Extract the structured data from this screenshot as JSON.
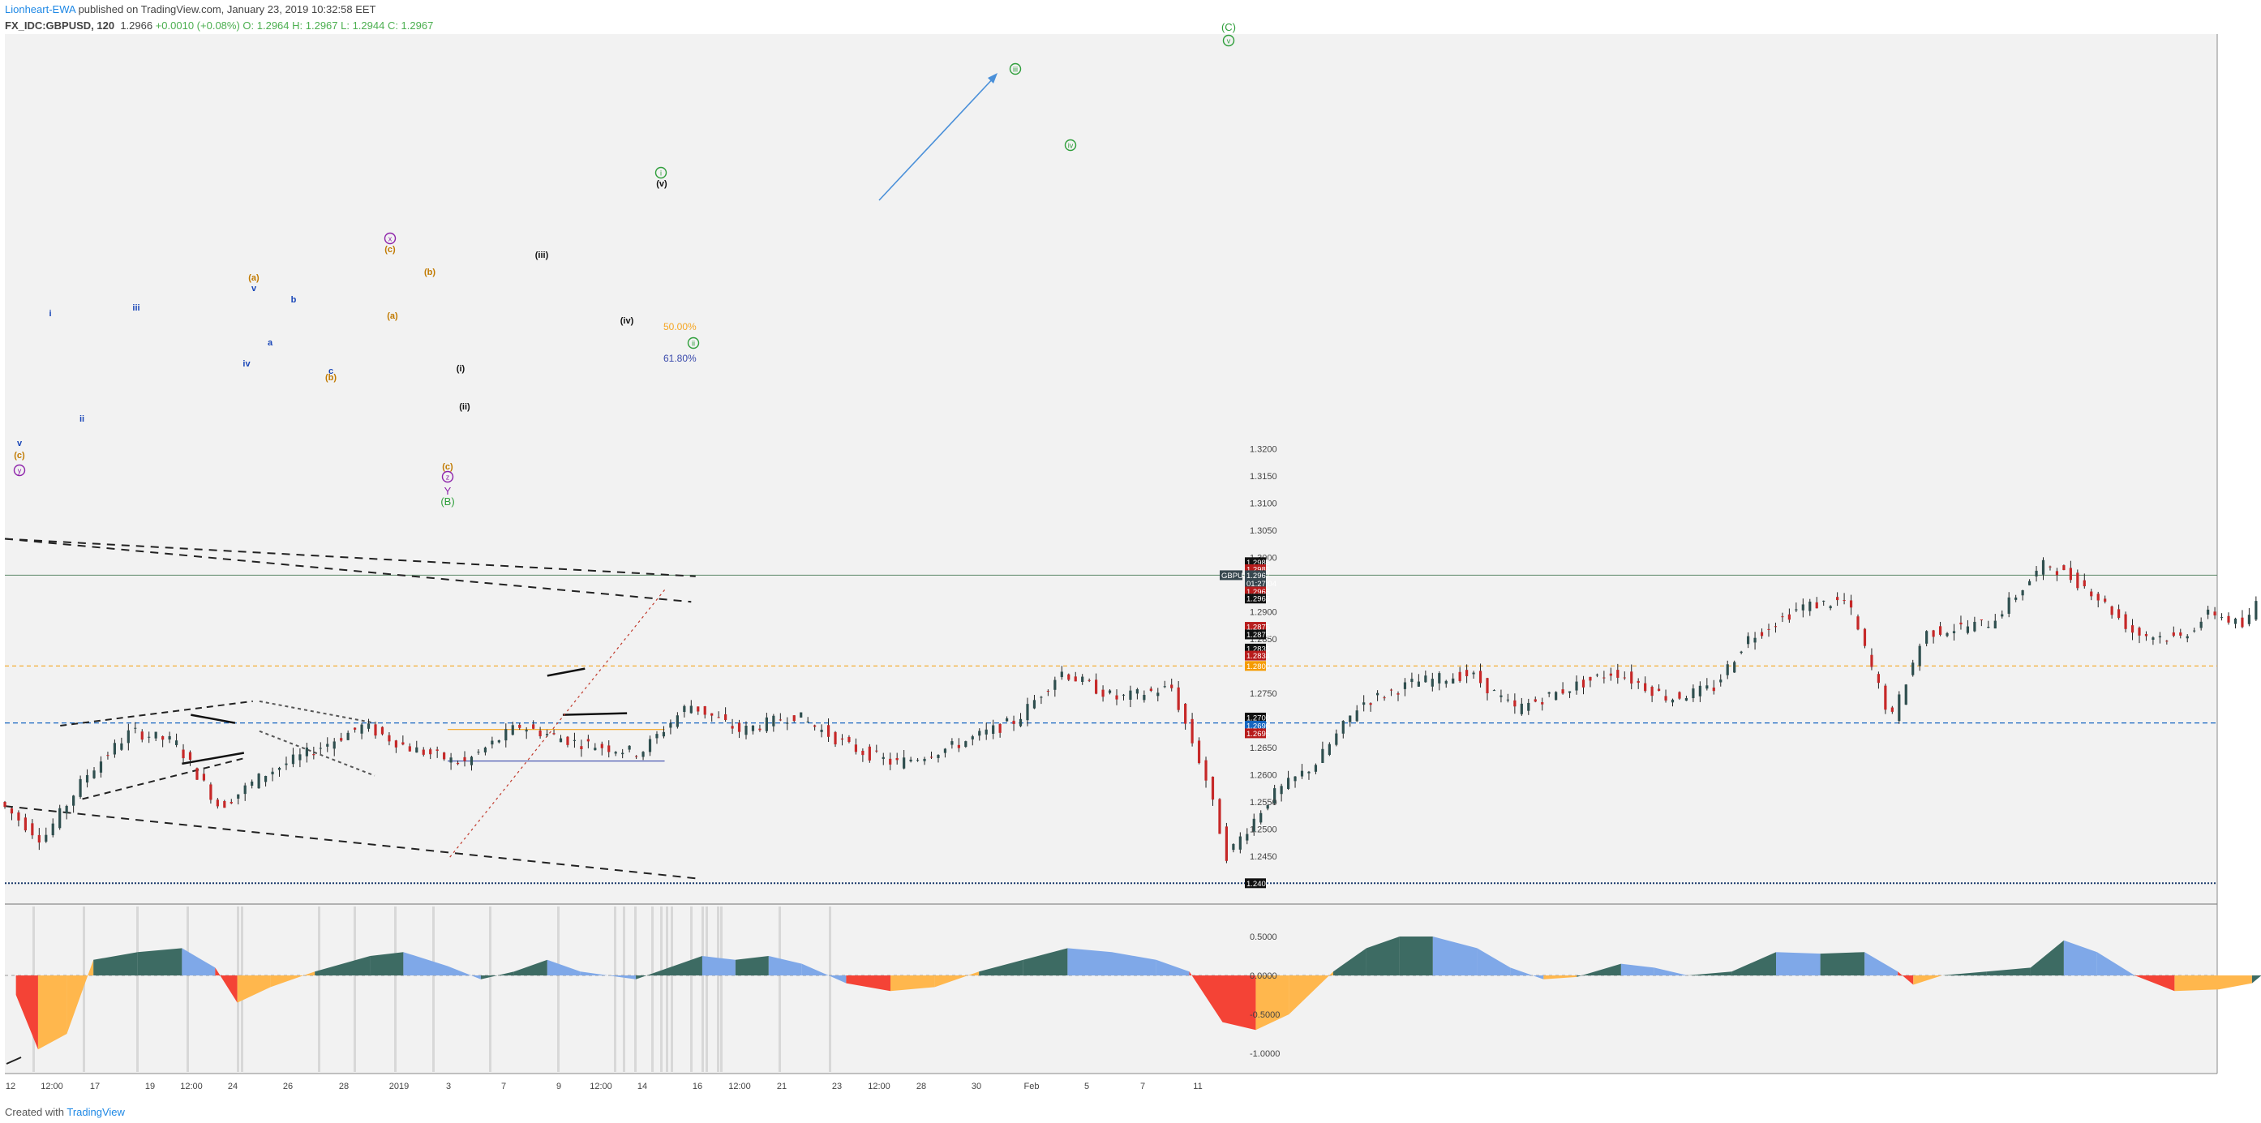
{
  "header": {
    "author": "Lionheart-EWA",
    "published": "published on TradingView.com, January 23, 2019 10:32:58 EET",
    "symbol": "FX_IDC:GBPUSD, 120",
    "last": "1.2966",
    "change": "+0.0010 (+0.08%)",
    "ohlc": "O: 1.2964 H: 1.2967 L: 1.2944 C: 1.2967"
  },
  "footer": {
    "created": "Created with",
    "brand": "TradingView"
  },
  "colors": {
    "up": "#2f4f4f",
    "down": "#c62828",
    "bg": "#f2f2f2",
    "wave_green": "#2e9e3a",
    "wave_purple": "#8e24aa",
    "wave_orange": "#c17a00",
    "wave_blue": "#1a47b8",
    "fib50": "#f5a623",
    "fib618": "#3949ab",
    "arrow": "#4a90d9",
    "osc_dark": "#3d6b63",
    "osc_light": "#7fa8e8",
    "osc_red": "#f44336",
    "osc_orange": "#ffb74d"
  },
  "price_axis": {
    "ticks": [
      "1.3200",
      "1.3150",
      "1.3100",
      "1.3050",
      "1.3000",
      "1.2900",
      "1.2850",
      "1.2750",
      "1.2650",
      "1.2600",
      "1.2550",
      "1.2500",
      "1.2450"
    ],
    "badges": [
      {
        "text": "1.2985",
        "v": 1.2991,
        "bg": "#111111"
      },
      {
        "text": "1.2985",
        "v": 1.2978,
        "bg": "#b71c1c"
      },
      {
        "text": "GBPUSD",
        "v": 1.2967,
        "bg": "#37474f",
        "left": true
      },
      {
        "text": "1.2967",
        "v": 1.2967,
        "bg": "#37474f"
      },
      {
        "text": "01:27:04",
        "v": 1.2952,
        "bg": "#37474f"
      },
      {
        "text": "1.2965",
        "v": 1.2937,
        "bg": "#b71c1c"
      },
      {
        "text": "1.2965",
        "v": 1.2924,
        "bg": "#111111"
      },
      {
        "text": "1.2875",
        "v": 1.2872,
        "bg": "#b71c1c"
      },
      {
        "text": "1.2875",
        "v": 1.2858,
        "bg": "#111111"
      },
      {
        "text": "1.2835",
        "v": 1.2832,
        "bg": "#111111"
      },
      {
        "text": "1.2834",
        "v": 1.2819,
        "bg": "#b71c1c"
      },
      {
        "text": "1.2800",
        "v": 1.28,
        "bg": "#f59b00"
      },
      {
        "text": "1.2700",
        "v": 1.2705,
        "bg": "#111111"
      },
      {
        "text": "1.2695",
        "v": 1.269,
        "bg": "#1565c0"
      },
      {
        "text": "1.2695",
        "v": 1.2676,
        "bg": "#b71c1c"
      },
      {
        "text": "1.2400",
        "v": 1.24,
        "bg": "#111111"
      }
    ]
  },
  "osc_axis": {
    "ticks": [
      "0.5000",
      "0.0000",
      "-0.5000",
      "-1.0000"
    ]
  },
  "time_axis": [
    "12",
    "12:00",
    "17",
    "19",
    "12:00",
    "24",
    "26",
    "28",
    "2019",
    "3",
    "7",
    "9",
    "12:00",
    "14",
    "16",
    "12:00",
    "21",
    "23",
    "12:00",
    "28",
    "30",
    "Feb",
    "5",
    "7",
    "11"
  ],
  "fib": {
    "level50": "50.00%",
    "level618": "61.80%"
  },
  "wave_labels": {
    "C_big": "(C)",
    "v_circ": "v",
    "iii_circ": "iii",
    "iv_circ": "iv",
    "i_circ": "i",
    "ii_circ": "ii",
    "x_circ": "x",
    "y_circ": "y",
    "z_circ": "z",
    "Y": "Y",
    "B_big": "(B)",
    "paren_c": "(c)",
    "paren_a": "(a)",
    "paren_b": "(b)",
    "small_i": "i",
    "small_ii": "ii",
    "small_iii": "iii",
    "small_iv": "iv",
    "small_v": "v",
    "a": "a",
    "b": "b",
    "c": "c",
    "roman_i": "(i)",
    "roman_ii": "(ii)",
    "roman_iii": "(iii)",
    "roman_iv": "(iv)",
    "roman_v": "(v)"
  },
  "chart_data": {
    "type": "candlestick",
    "symbol": "FX_IDC:GBPUSD",
    "timeframe": "120",
    "ylim": [
      1.236,
      1.325
    ],
    "x_ticks": [
      "12",
      "12:00",
      "17",
      "19",
      "12:00",
      "24",
      "26",
      "28",
      "2019",
      "3",
      "7",
      "9",
      "12:00",
      "14",
      "16",
      "12:00",
      "21",
      "23",
      "12:00",
      "28",
      "30",
      "Feb",
      "5",
      "7",
      "11"
    ],
    "price_path": [
      [
        0,
        1.255
      ],
      [
        20,
        1.248
      ],
      [
        40,
        1.26
      ],
      [
        60,
        1.268
      ],
      [
        80,
        1.266
      ],
      [
        100,
        1.254
      ],
      [
        120,
        1.26
      ],
      [
        140,
        1.264
      ],
      [
        165,
        1.269
      ],
      [
        185,
        1.265
      ],
      [
        210,
        1.262
      ],
      [
        235,
        1.269
      ],
      [
        260,
        1.266
      ],
      [
        290,
        1.264
      ],
      [
        312,
        1.273
      ],
      [
        335,
        1.268
      ],
      [
        360,
        1.271
      ],
      [
        385,
        1.265
      ],
      [
        405,
        1.262
      ],
      [
        430,
        1.265
      ],
      [
        460,
        1.27
      ],
      [
        480,
        1.279
      ],
      [
        505,
        1.274
      ],
      [
        530,
        1.276
      ],
      [
        545,
        1.26
      ],
      [
        555,
        1.245
      ],
      [
        575,
        1.256
      ],
      [
        595,
        1.262
      ],
      [
        615,
        1.273
      ],
      [
        640,
        1.277
      ],
      [
        665,
        1.2785
      ],
      [
        685,
        1.272
      ],
      [
        710,
        1.276
      ],
      [
        730,
        1.279
      ],
      [
        755,
        1.274
      ],
      [
        775,
        1.276
      ],
      [
        790,
        1.285
      ],
      [
        815,
        1.291
      ],
      [
        835,
        1.292
      ],
      [
        855,
        1.27
      ],
      [
        870,
        1.286
      ],
      [
        900,
        1.288
      ],
      [
        925,
        1.299
      ],
      [
        945,
        1.294
      ],
      [
        965,
        1.286
      ],
      [
        985,
        1.285
      ],
      [
        1000,
        1.29
      ],
      [
        1015,
        1.287
      ],
      [
        1025,
        1.297
      ],
      [
        1045,
        1.2967
      ]
    ],
    "oscillator": {
      "ylim": [
        -1.2,
        0.7
      ],
      "path": [
        [
          5,
          -0.25
        ],
        [
          15,
          -0.95
        ],
        [
          28,
          -0.75
        ],
        [
          40,
          0.2
        ],
        [
          60,
          0.3
        ],
        [
          80,
          0.35
        ],
        [
          95,
          0.1
        ],
        [
          105,
          -0.35
        ],
        [
          120,
          -0.15
        ],
        [
          140,
          0.05
        ],
        [
          165,
          0.25
        ],
        [
          180,
          0.3
        ],
        [
          200,
          0.12
        ],
        [
          215,
          -0.05
        ],
        [
          230,
          0.05
        ],
        [
          245,
          0.2
        ],
        [
          260,
          0.05
        ],
        [
          285,
          -0.05
        ],
        [
          300,
          0.1
        ],
        [
          315,
          0.25
        ],
        [
          330,
          0.2
        ],
        [
          345,
          0.25
        ],
        [
          360,
          0.15
        ],
        [
          380,
          -0.1
        ],
        [
          400,
          -0.2
        ],
        [
          420,
          -0.15
        ],
        [
          440,
          0.05
        ],
        [
          460,
          0.2
        ],
        [
          480,
          0.35
        ],
        [
          500,
          0.3
        ],
        [
          520,
          0.2
        ],
        [
          535,
          0.05
        ],
        [
          550,
          -0.6
        ],
        [
          565,
          -0.7
        ],
        [
          580,
          -0.5
        ],
        [
          600,
          0.05
        ],
        [
          615,
          0.35
        ],
        [
          630,
          0.5
        ],
        [
          645,
          0.5
        ],
        [
          665,
          0.35
        ],
        [
          680,
          0.1
        ],
        [
          695,
          -0.05
        ],
        [
          710,
          -0.02
        ],
        [
          730,
          0.15
        ],
        [
          745,
          0.1
        ],
        [
          760,
          0.0
        ],
        [
          780,
          0.05
        ],
        [
          800,
          0.3
        ],
        [
          820,
          0.28
        ],
        [
          840,
          0.3
        ],
        [
          855,
          0.05
        ],
        [
          862,
          -0.12
        ],
        [
          875,
          0.0
        ],
        [
          895,
          0.05
        ],
        [
          915,
          0.1
        ],
        [
          930,
          0.45
        ],
        [
          945,
          0.3
        ],
        [
          962,
          0.0
        ],
        [
          980,
          -0.2
        ],
        [
          1000,
          -0.18
        ],
        [
          1015,
          -0.1
        ],
        [
          1030,
          0.25
        ],
        [
          1045,
          0.3
        ]
      ]
    }
  }
}
